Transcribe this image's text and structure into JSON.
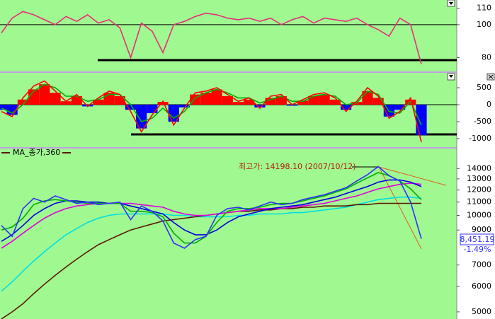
{
  "chart_data": [
    {
      "type": "line",
      "ylim": [
        72,
        115
      ],
      "yticks": [
        80,
        100,
        110
      ],
      "reference_line": 100,
      "series": [
        {
          "color": "#e8307a",
          "values": [
            95,
            104,
            108,
            106,
            103,
            100,
            105,
            102,
            106,
            101,
            103,
            98,
            80,
            101,
            96,
            83,
            100,
            102,
            105,
            107,
            106,
            104,
            103,
            104,
            102,
            104,
            100,
            103,
            105,
            101,
            104,
            103,
            102,
            104,
            100,
            97,
            93,
            104,
            100,
            76
          ]
        }
      ]
    },
    {
      "type": "bar-line",
      "ylim": [
        -1230,
        917
      ],
      "yticks": [
        500,
        0,
        -500,
        -1000
      ],
      "reference_line": 0,
      "series": [
        {
          "type": "bar",
          "positive_color": "#ff0000",
          "negative_color": "#0000ff",
          "values": [
            -150,
            -300,
            150,
            450,
            600,
            350,
            100,
            250,
            -50,
            150,
            350,
            250,
            -150,
            -700,
            -250,
            80,
            -500,
            -80,
            300,
            350,
            450,
            250,
            80,
            150,
            -80,
            200,
            250,
            -30,
            120,
            250,
            300,
            150,
            -150,
            80,
            400,
            200,
            -350,
            -150,
            150,
            -900
          ]
        },
        {
          "type": "line",
          "color": "#00b000",
          "values": [
            -100,
            -250,
            0,
            400,
            600,
            500,
            250,
            250,
            100,
            150,
            300,
            300,
            0,
            -500,
            -400,
            -100,
            -400,
            -200,
            200,
            350,
            450,
            350,
            200,
            200,
            50,
            150,
            250,
            100,
            100,
            250,
            300,
            250,
            0,
            50,
            400,
            300,
            -200,
            -250,
            100,
            -600
          ]
        },
        {
          "type": "line",
          "color": "#ff0000",
          "values": [
            -200,
            -350,
            200,
            550,
            700,
            400,
            100,
            300,
            -50,
            200,
            400,
            300,
            -200,
            -800,
            -300,
            100,
            -600,
            -100,
            350,
            400,
            500,
            300,
            100,
            200,
            -100,
            250,
            300,
            0,
            150,
            300,
            350,
            200,
            -200,
            100,
            500,
            250,
            -400,
            -200,
            200,
            -1100
          ]
        }
      ]
    },
    {
      "type": "line",
      "log_scale": true,
      "ylim": [
        4750,
        16000
      ],
      "yticks": [
        14000,
        13000,
        12000,
        11000,
        10000,
        9000,
        7000,
        6000,
        5000
      ],
      "annotation": "최고가: 14198.10 (2007/10/12)",
      "last_value_label": "8,451.19",
      "change_label": "-1.49%",
      "series": [
        {
          "color": "#00e0e0",
          "values": [
            5800,
            6200,
            6700,
            7200,
            7700,
            8200,
            8700,
            9100,
            9500,
            9800,
            10000,
            10100,
            10100,
            10100,
            10100,
            10100,
            10000,
            10000,
            9900,
            9900,
            9900,
            9900,
            10000,
            10000,
            10100,
            10100,
            10100,
            10200,
            10200,
            10300,
            10400,
            10500,
            10600,
            10800,
            11000,
            11200,
            11300,
            11400,
            11400,
            11300
          ]
        },
        {
          "name": "MA_종가,360",
          "color": "#5a1a00",
          "values": [
            4750,
            5000,
            5300,
            5700,
            6100,
            6500,
            6900,
            7300,
            7700,
            8100,
            8400,
            8700,
            9000,
            9200,
            9400,
            9600,
            9700,
            9800,
            9900,
            10000,
            10100,
            10200,
            10300,
            10300,
            10400,
            10400,
            10500,
            10500,
            10600,
            10600,
            10700,
            10700,
            10700,
            10800,
            10800,
            10900,
            10900,
            10900,
            10900,
            10900
          ]
        },
        {
          "color": "#e000e0",
          "values": [
            7900,
            8300,
            8800,
            9300,
            9800,
            10200,
            10500,
            10700,
            10800,
            10900,
            10900,
            10900,
            10900,
            10800,
            10700,
            10600,
            10300,
            10100,
            10000,
            10000,
            10100,
            10200,
            10300,
            10400,
            10500,
            10500,
            10500,
            10600,
            10700,
            10800,
            10900,
            11100,
            11300,
            11500,
            11800,
            12100,
            12300,
            12500,
            12600,
            12500
          ]
        },
        {
          "color": "#0000e0",
          "values": [
            8300,
            8700,
            9300,
            10000,
            10500,
            10900,
            11100,
            11100,
            11000,
            11000,
            10900,
            10900,
            10700,
            10500,
            10300,
            10100,
            9500,
            9000,
            8700,
            8700,
            9000,
            9500,
            9900,
            10100,
            10300,
            10500,
            10600,
            10700,
            10800,
            11000,
            11200,
            11400,
            11700,
            12000,
            12300,
            12700,
            12900,
            12900,
            12700,
            12300
          ]
        },
        {
          "color": "#00b000",
          "values": [
            9000,
            9200,
            9800,
            10800,
            11100,
            11200,
            11100,
            11000,
            10900,
            10900,
            10900,
            10900,
            10300,
            10300,
            10200,
            9900,
            8800,
            8200,
            8200,
            8600,
            9500,
            10300,
            10500,
            10500,
            10600,
            10800,
            10900,
            10900,
            11100,
            11300,
            11500,
            11800,
            12100,
            12600,
            13100,
            13600,
            13300,
            12800,
            12100,
            11200
          ]
        },
        {
          "color": "#3030ff",
          "values": [
            9300,
            8600,
            10500,
            11300,
            11000,
            11500,
            11200,
            10900,
            11000,
            10800,
            10900,
            11000,
            9700,
            10700,
            10300,
            9600,
            8200,
            7900,
            8400,
            8600,
            10000,
            10500,
            10600,
            10400,
            10700,
            11000,
            10800,
            10900,
            11200,
            11400,
            11600,
            11900,
            12200,
            12800,
            13400,
            14198,
            13300,
            12800,
            11000,
            8451
          ]
        }
      ]
    }
  ]
}
